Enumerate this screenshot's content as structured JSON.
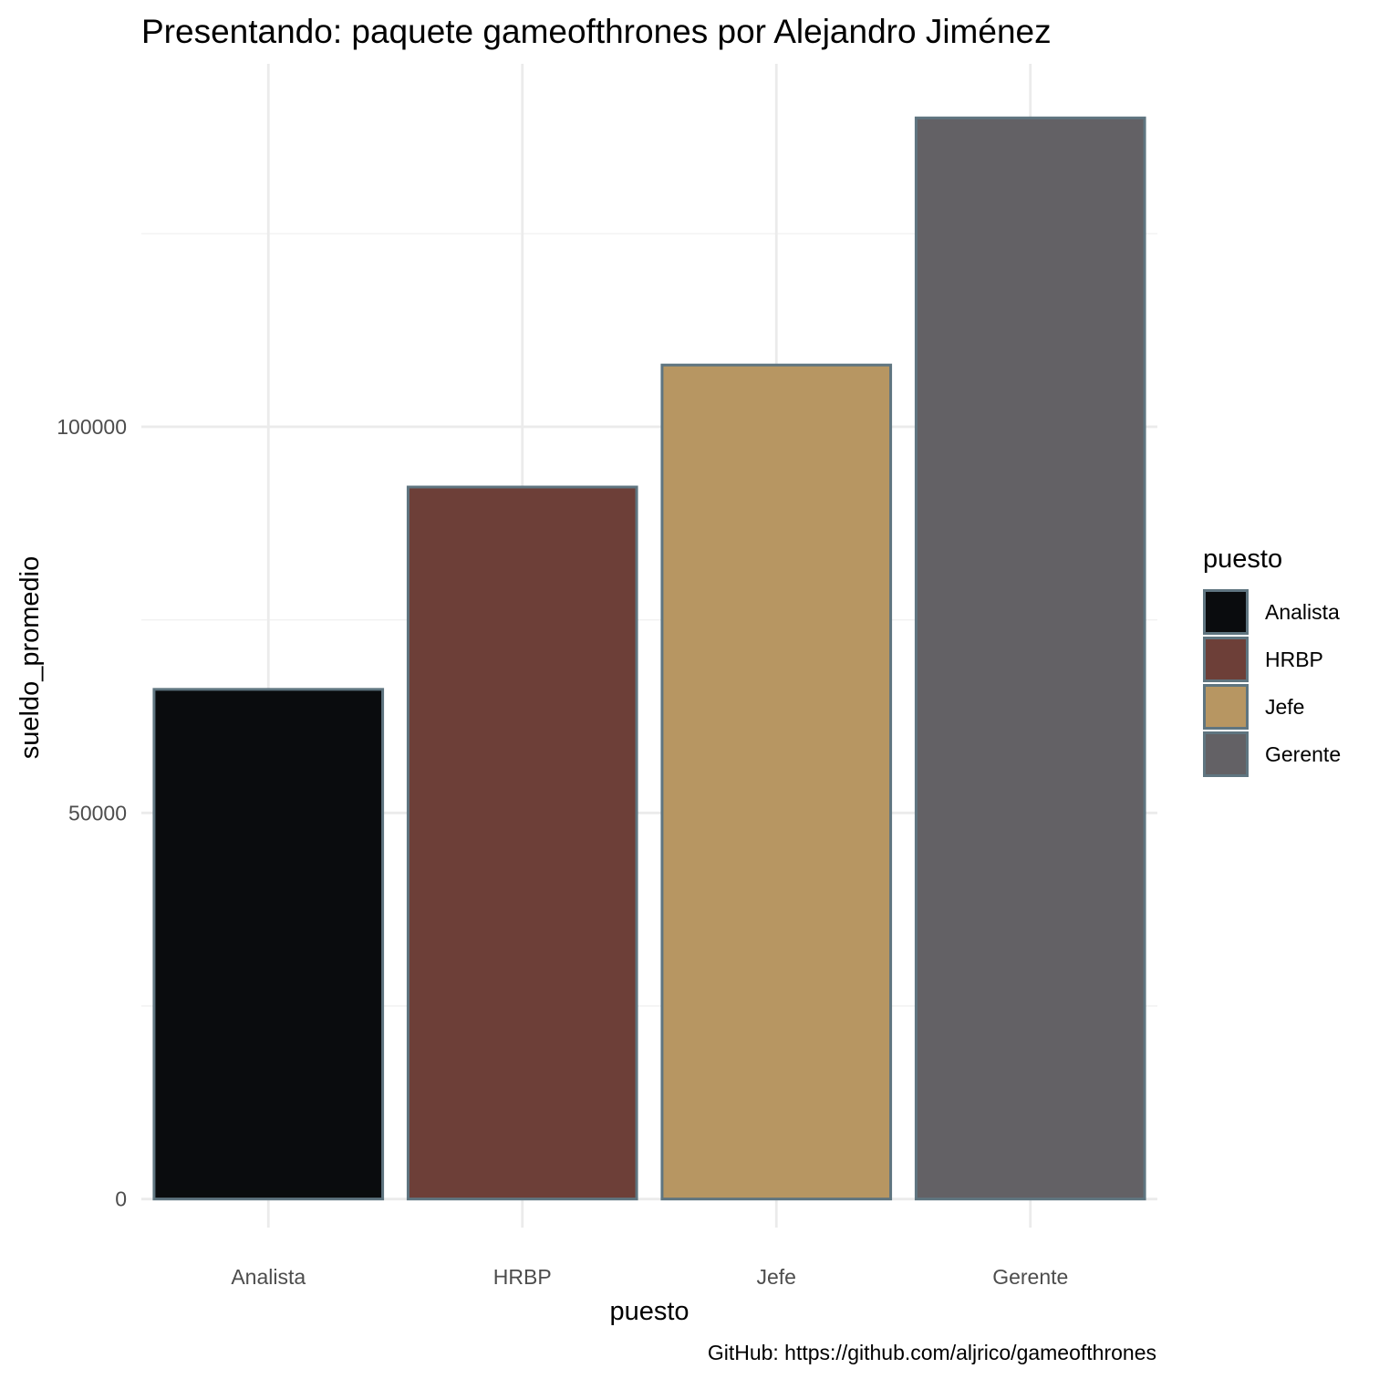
{
  "chart_data": {
    "type": "bar",
    "title": "Presentando: paquete gameofthrones por Alejandro Jiménez",
    "xlabel": "puesto",
    "ylabel": "sueldo_promedio",
    "caption": "GitHub: https://github.com/aljrico/gameofthrones",
    "categories": [
      "Analista",
      "HRBP",
      "Jefe",
      "Gerente"
    ],
    "values": [
      66000,
      92200,
      108000,
      140000
    ],
    "colors": [
      "#0a0c0e",
      "#6d3f38",
      "#b79662",
      "#636165"
    ],
    "bar_outline_color": "#5f7580",
    "ylim": [
      -3700,
      147000
    ],
    "yticks": [
      0,
      50000,
      100000
    ],
    "ytick_labels": [
      "0",
      "50000",
      "100000"
    ],
    "grid": true,
    "legend": {
      "title": "puesto",
      "position": "right",
      "items": [
        "Analista",
        "HRBP",
        "Jefe",
        "Gerente"
      ]
    }
  }
}
